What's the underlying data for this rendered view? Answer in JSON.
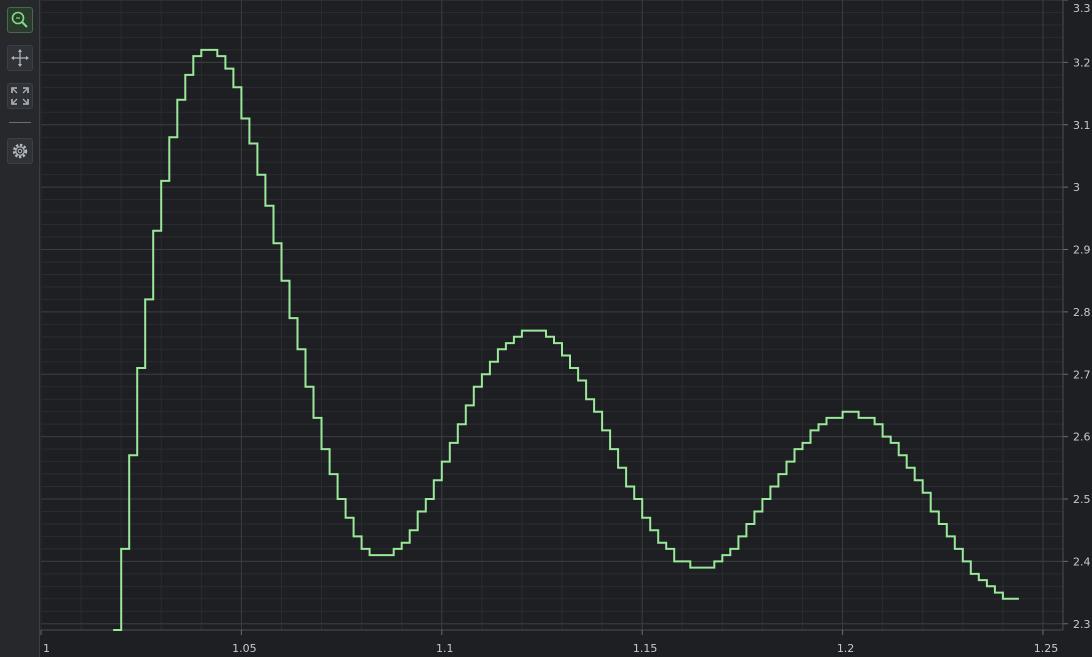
{
  "toolbar": {
    "buttons": [
      {
        "name": "zoom-tool-button",
        "icon": "zoom-icon",
        "active": true
      },
      {
        "name": "pan-tool-button",
        "icon": "pan-arrows-icon",
        "active": false
      },
      {
        "name": "zoom-extents-button",
        "icon": "fit-to-screen-icon",
        "active": false
      },
      {
        "name": "settings-button",
        "icon": "gear-icon",
        "active": false
      }
    ]
  },
  "colors": {
    "background": "#1e1f22",
    "grid_major": "#3a3c40",
    "grid_minor": "#2a2c30",
    "series": "#9ae89a",
    "tick_text": "#c8c9cc"
  },
  "chart_data": {
    "type": "line",
    "step": true,
    "title": "",
    "xlabel": "",
    "ylabel": "",
    "xlim": [
      1.0,
      1.255
    ],
    "ylim": [
      2.29,
      3.3
    ],
    "grid": true,
    "legend": "none",
    "x_ticks": [
      "1",
      "1.05",
      "1.1",
      "1.15",
      "1.2",
      "1.25"
    ],
    "y_ticks": [
      "2.3",
      "2.4",
      "2.5",
      "2.6",
      "2.7",
      "2.8",
      "2.9",
      "3",
      "3.1",
      "3.2",
      "3.3"
    ],
    "series": [
      {
        "color": "#9ae89a",
        "x_start": 1.018,
        "x_step": 0.002,
        "values": [
          2.29,
          2.42,
          2.57,
          2.71,
          2.82,
          2.93,
          3.01,
          3.08,
          3.14,
          3.18,
          3.21,
          3.22,
          3.22,
          3.21,
          3.19,
          3.16,
          3.11,
          3.07,
          3.02,
          2.97,
          2.91,
          2.85,
          2.79,
          2.74,
          2.68,
          2.63,
          2.58,
          2.54,
          2.5,
          2.47,
          2.44,
          2.42,
          2.41,
          2.41,
          2.41,
          2.42,
          2.43,
          2.45,
          2.48,
          2.5,
          2.53,
          2.56,
          2.59,
          2.62,
          2.65,
          2.68,
          2.7,
          2.72,
          2.74,
          2.75,
          2.76,
          2.77,
          2.77,
          2.77,
          2.76,
          2.75,
          2.73,
          2.71,
          2.69,
          2.66,
          2.64,
          2.61,
          2.58,
          2.55,
          2.52,
          2.5,
          2.47,
          2.45,
          2.43,
          2.42,
          2.4,
          2.4,
          2.39,
          2.39,
          2.39,
          2.4,
          2.41,
          2.42,
          2.44,
          2.46,
          2.48,
          2.5,
          2.52,
          2.54,
          2.56,
          2.58,
          2.59,
          2.61,
          2.62,
          2.63,
          2.63,
          2.64,
          2.64,
          2.63,
          2.63,
          2.62,
          2.6,
          2.59,
          2.57,
          2.55,
          2.53,
          2.51,
          2.48,
          2.46,
          2.44,
          2.42,
          2.4,
          2.38,
          2.37,
          2.36,
          2.35,
          2.34,
          2.34
        ]
      }
    ]
  }
}
